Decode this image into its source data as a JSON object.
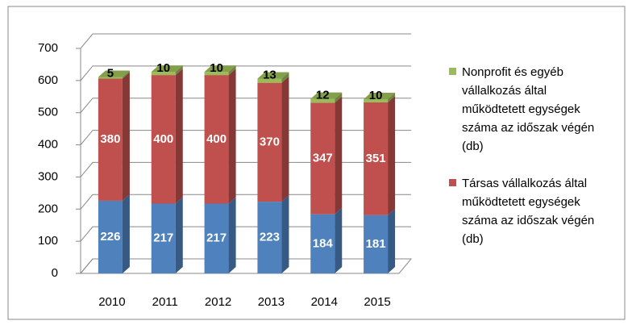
{
  "chart_data": {
    "type": "bar",
    "stacked": true,
    "three_d": true,
    "categories": [
      "2010",
      "2011",
      "2012",
      "2013",
      "2014",
      "2015"
    ],
    "series": [
      {
        "color": "#4f81bd",
        "values": [
          226,
          217,
          217,
          223,
          184,
          181
        ]
      },
      {
        "name": "Társas vállalkozás által működtetett egységek száma az időszak végén (db)",
        "color": "#c0504d",
        "values": [
          380,
          400,
          400,
          370,
          347,
          351
        ]
      },
      {
        "name": "Nonprofit és egyéb vállalkozás által működtetett egységek száma az időszak végén (db)",
        "color": "#9bbb59",
        "values": [
          5,
          10,
          10,
          13,
          12,
          10
        ]
      }
    ],
    "ylim": [
      0,
      700
    ],
    "yticks": [
      0,
      100,
      200,
      300,
      400,
      500,
      600,
      700
    ],
    "grid": true,
    "legend": "right"
  }
}
